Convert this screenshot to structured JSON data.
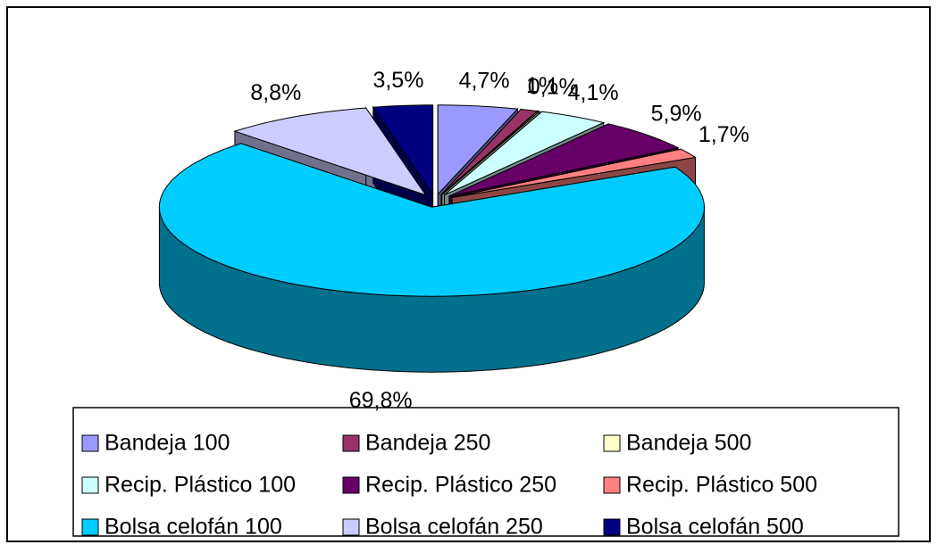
{
  "chart_data": {
    "type": "pie3d",
    "categories": [
      "Bandeja 100",
      "Bandeja 250",
      "Bandeja 500",
      "Recip. Plástico 100",
      "Recip. Plástico 250",
      "Recip. Plástico 500",
      "Bolsa celofán 100",
      "Bolsa celofán 250",
      "Bolsa celofán 500"
    ],
    "values": [
      4.7,
      1,
      0.1,
      4.1,
      5.9,
      1.7,
      69.8,
      8.8,
      3.5
    ],
    "value_labels": [
      "4,7%",
      "1%",
      "0,1%",
      "4,1%",
      "5,9%",
      "1,7%",
      "69,8%",
      "8,8%",
      "3,5%"
    ],
    "colors": [
      "#9999ff",
      "#993366",
      "#ffffcc",
      "#ccffff",
      "#660066",
      "#ff8080",
      "#00ccff",
      "#ccccff",
      "#000080"
    ],
    "legend": "bottom"
  }
}
